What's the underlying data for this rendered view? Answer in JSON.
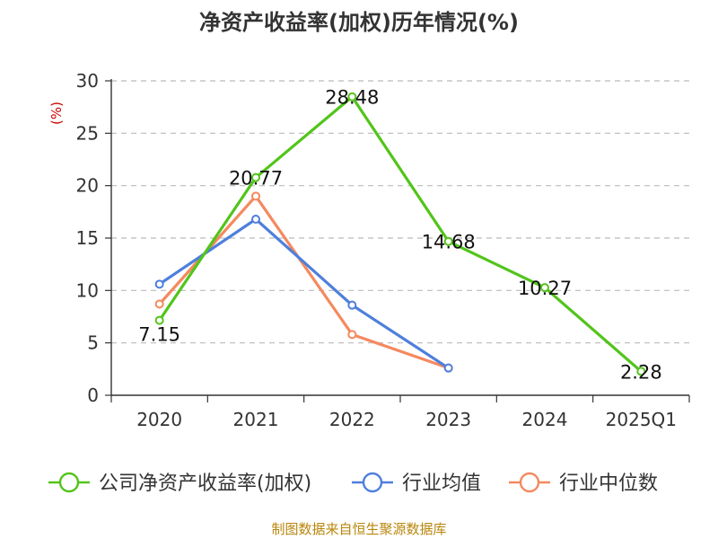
{
  "chart_data": {
    "type": "line",
    "title": "净资产收益率(加权)历年情况(%)",
    "ylabel": "(%)",
    "categories": [
      "2020",
      "2021",
      "2022",
      "2023",
      "2024",
      "2025Q1"
    ],
    "ylim": [
      0,
      30
    ],
    "yticks": [
      0,
      5,
      10,
      15,
      20,
      25,
      30
    ],
    "grid": true,
    "legend_position": "bottom",
    "series": [
      {
        "name": "公司净资产收益率(加权)",
        "color": "#52c41a",
        "values": [
          7.15,
          20.77,
          28.48,
          14.68,
          10.27,
          2.28
        ],
        "labels": [
          "7.15",
          "20.77",
          "28.48",
          "14.68",
          "10.27",
          "2.28"
        ]
      },
      {
        "name": "行业均值",
        "color": "#4e7fdc",
        "values": [
          10.6,
          16.8,
          8.6,
          2.6,
          null,
          null
        ]
      },
      {
        "name": "行业中位数",
        "color": "#f4895f",
        "values": [
          8.7,
          19.0,
          5.8,
          2.6,
          null,
          null
        ]
      }
    ]
  },
  "source_text": "制图数据来自恒生聚源数据库"
}
